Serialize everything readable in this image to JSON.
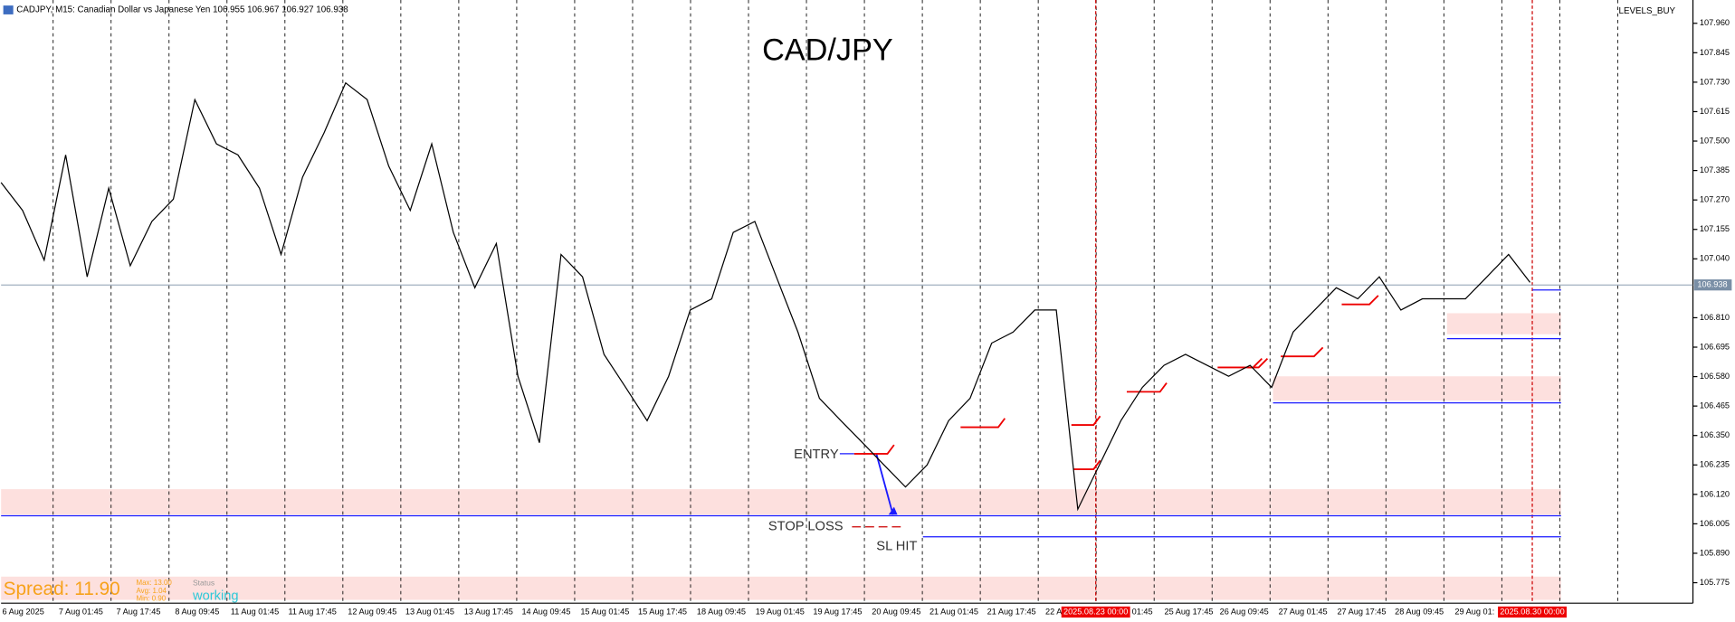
{
  "header": {
    "symbol_line": "CADJPY, M15:  Canadian Dollar vs Japanese Yen  106.955 106.967 106.927 106.938",
    "indicator": "LEVELS_BUY"
  },
  "chart": {
    "title": "CAD/JPY",
    "ylim": [
      105.695,
      108.051
    ],
    "yticks": [
      {
        "value": 107.96,
        "label": "107.960"
      },
      {
        "value": 107.845,
        "label": "107.845"
      },
      {
        "value": 107.73,
        "label": "107.730"
      },
      {
        "value": 107.615,
        "label": "107.615"
      },
      {
        "value": 107.5,
        "label": "107.500"
      },
      {
        "value": 107.385,
        "label": "107.385"
      },
      {
        "value": 107.27,
        "label": "107.270"
      },
      {
        "value": 107.155,
        "label": "107.155"
      },
      {
        "value": 107.04,
        "label": "107.040"
      },
      {
        "value": 106.81,
        "label": "106.810"
      },
      {
        "value": 106.695,
        "label": "106.695"
      },
      {
        "value": 106.58,
        "label": "106.580"
      },
      {
        "value": 106.465,
        "label": "106.465"
      },
      {
        "value": 106.35,
        "label": "106.350"
      },
      {
        "value": 106.235,
        "label": "106.235"
      },
      {
        "value": 106.12,
        "label": "106.120"
      },
      {
        "value": 106.005,
        "label": "106.005"
      },
      {
        "value": 105.89,
        "label": "105.890"
      },
      {
        "value": 105.775,
        "label": "105.775"
      }
    ],
    "current_price": {
      "value": 106.938,
      "label": "106.938"
    },
    "time_labels": [
      "6 Aug 2025",
      "7 Aug 01:45",
      "7 Aug 17:45",
      "8 Aug 09:45",
      "11 Aug 01:45",
      "11 Aug 17:45",
      "12 Aug 09:45",
      "13 Aug 01:45",
      "13 Aug 17:45",
      "14 Aug 09:45",
      "15 Aug 01:45",
      "15 Aug 17:45",
      "18 Aug 09:45",
      "19 Aug 01:45",
      "19 Aug 17:45",
      "20 Aug 09:45",
      "21 Aug 01:45",
      "21 Aug 17:45",
      "22 A",
      "01:45",
      "25 Aug 17:45",
      "26 Aug 09:45",
      "27 Aug 01:45",
      "27 Aug 17:45",
      "28 Aug 09:45",
      "29 Aug 01:"
    ],
    "marker_labels": [
      "2025.08.23 00:00",
      "2025.08.30 00:00"
    ],
    "close": [
      107.338,
      107.229,
      107.035,
      107.446,
      106.97,
      107.316,
      107.013,
      107.186,
      107.273,
      107.662,
      107.489,
      107.446,
      107.316,
      107.057,
      107.359,
      107.532,
      107.727,
      107.662,
      107.402,
      107.229,
      107.489,
      107.143,
      106.927,
      107.1,
      106.581,
      106.322,
      107.057,
      106.97,
      106.667,
      106.538,
      106.408,
      106.581,
      106.84,
      106.884,
      107.143,
      107.186,
      106.97,
      106.754,
      106.495,
      106.408,
      106.322,
      106.235,
      106.149,
      106.235,
      106.408,
      106.495,
      106.711,
      106.754,
      106.84,
      106.84,
      106.062,
      106.235,
      106.408,
      106.538,
      106.624,
      106.667,
      106.624,
      106.581,
      106.624,
      106.538,
      106.754,
      106.84,
      106.927,
      106.884,
      106.97,
      106.84,
      106.884,
      106.884,
      106.884,
      106.97,
      107.057,
      106.948
    ],
    "annotations": {
      "entry": "ENTRY",
      "stop_loss": "STOP LOSS",
      "sl_hit": "SL HIT"
    },
    "spread": {
      "label": "Spread: 11.90",
      "max": "Max: 13.00",
      "avg": "Avg: 1.04",
      "min": "Min: 0.90",
      "status_label": "Status",
      "status": "working"
    }
  }
}
